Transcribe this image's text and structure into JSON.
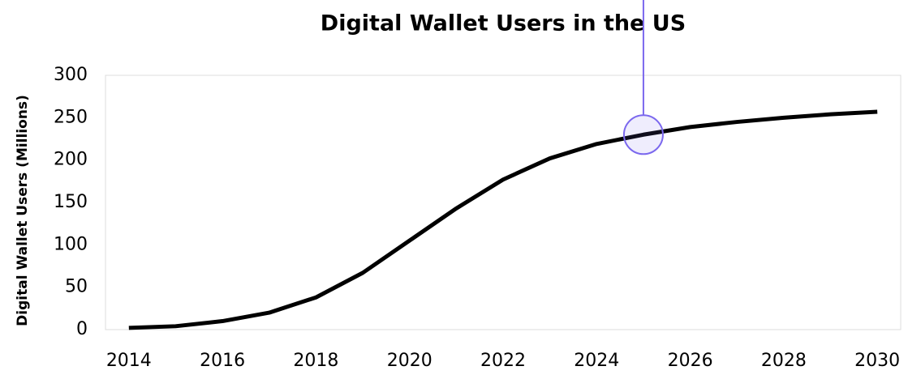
{
  "chart_data": {
    "type": "line",
    "title": "Digital Wallet Users in the US",
    "y_label": "Digital Wallet Users (Millions)",
    "x": [
      2014,
      2015,
      2016,
      2017,
      2018,
      2019,
      2020,
      2021,
      2022,
      2023,
      2024,
      2025,
      2026,
      2027,
      2028,
      2029,
      2030
    ],
    "series": [
      {
        "name": "Digital Wallet Users",
        "color": "#000000",
        "values": [
          2,
          4,
          10,
          20,
          38,
          67,
          105,
          143,
          177,
          202,
          219,
          230,
          239,
          245,
          250,
          254,
          257
        ]
      }
    ],
    "xlim": [
      2013.5,
      2030.5
    ],
    "xticks": [
      2014,
      2016,
      2018,
      2020,
      2022,
      2024,
      2026,
      2028,
      2030
    ],
    "ylim": [
      0,
      300
    ],
    "yticks": [
      0,
      50,
      100,
      150,
      200,
      250,
      300
    ],
    "grid": false
  }
}
